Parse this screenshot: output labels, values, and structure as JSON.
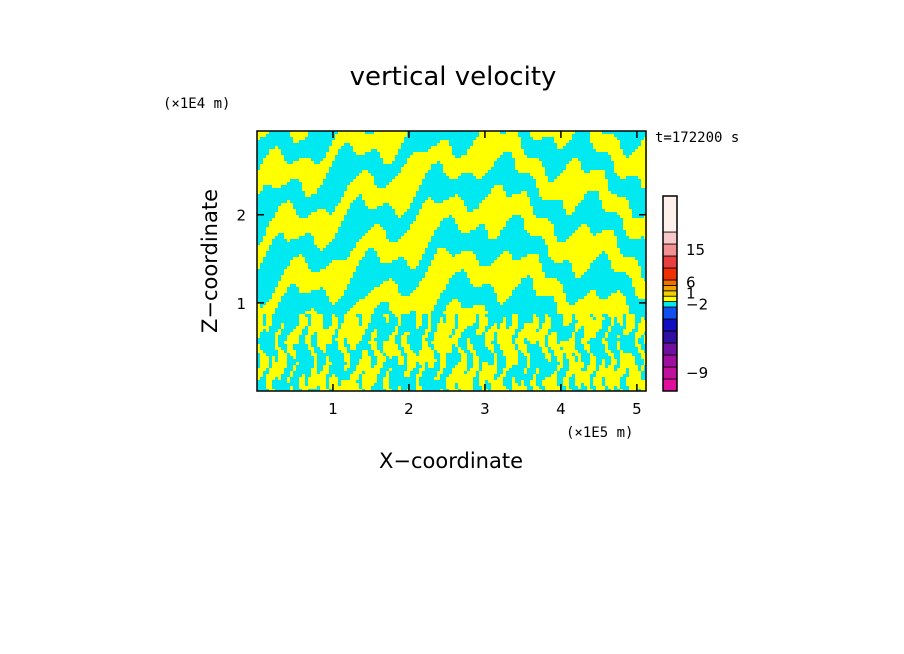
{
  "chart_data": {
    "type": "heatmap",
    "title": "vertical velocity",
    "xlabel": "X−coordinate",
    "ylabel": "Z−coordinate",
    "x_unit": "(×1E5 m)",
    "y_unit": "(×1E4 m)",
    "time_label": "t=172200 s",
    "xlim": [
      0,
      5.12
    ],
    "ylim": [
      0,
      2.95
    ],
    "x_ticks": [
      1,
      2,
      3,
      4,
      5
    ],
    "y_ticks": [
      1,
      2
    ],
    "field_colors": [
      "#00e8f0",
      "#ffff00"
    ],
    "colorbar": {
      "bins": [
        {
          "color": "#e0109c"
        },
        {
          "color": "#c0109c"
        },
        {
          "color": "#a010a0"
        },
        {
          "color": "#7010a0"
        },
        {
          "color": "#3010a0"
        },
        {
          "color": "#1010c0"
        },
        {
          "color": "#1050f0"
        },
        {
          "color": "#00e8f0"
        },
        {
          "color": "#ffff00"
        },
        {
          "color": "#f0d000"
        },
        {
          "color": "#f0a000"
        },
        {
          "color": "#f07000"
        },
        {
          "color": "#f03000"
        },
        {
          "color": "#e84040"
        },
        {
          "color": "#f09090"
        },
        {
          "color": "#f8c8c8"
        },
        {
          "color": "#fff0ec"
        }
      ],
      "labels": [
        "15",
        "6",
        "1",
        "−2",
        "−9"
      ]
    }
  }
}
